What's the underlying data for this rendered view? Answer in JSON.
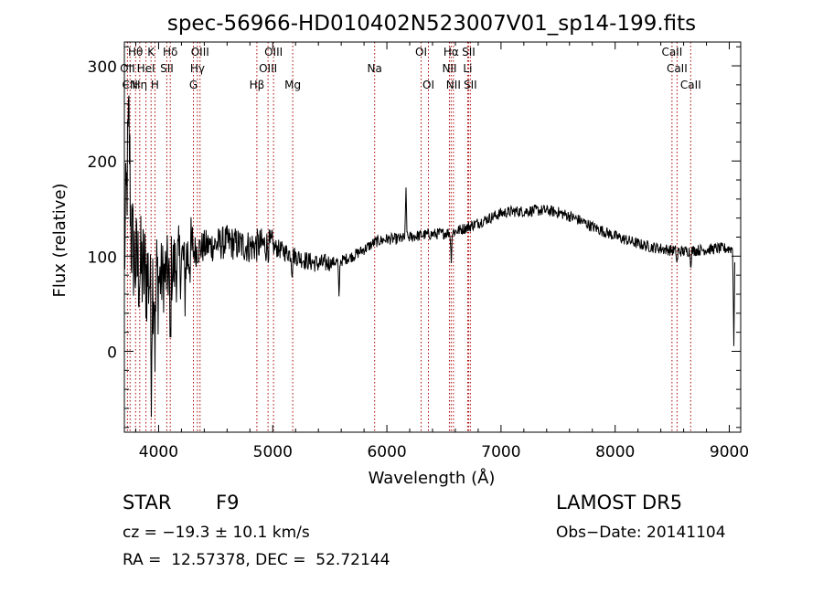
{
  "chart_data": {
    "type": "line",
    "title": "spec-56966-HD010402N523007V01_sp14-199.fits",
    "xlabel": "Wavelength (Å)",
    "ylabel": "Flux (relative)",
    "xlim": [
      3700,
      9100
    ],
    "ylim": [
      -85,
      325
    ],
    "xticks": [
      4000,
      5000,
      6000,
      7000,
      8000,
      9000
    ],
    "yticks": [
      0,
      100,
      200,
      300
    ],
    "line_color": "#000000",
    "marker_color": "#aa0000",
    "spectrum_anchors": [
      [
        3700,
        95
      ],
      [
        3740,
        240
      ],
      [
        3760,
        120
      ],
      [
        3800,
        90
      ],
      [
        3900,
        80
      ],
      [
        4000,
        75
      ],
      [
        4100,
        85
      ],
      [
        4200,
        95
      ],
      [
        4300,
        105
      ],
      [
        4400,
        110
      ],
      [
        4500,
        112
      ],
      [
        4600,
        115
      ],
      [
        4700,
        112
      ],
      [
        4800,
        110
      ],
      [
        4900,
        112
      ],
      [
        5000,
        110
      ],
      [
        5100,
        105
      ],
      [
        5200,
        100
      ],
      [
        5300,
        95
      ],
      [
        5400,
        92
      ],
      [
        5500,
        93
      ],
      [
        5600,
        95
      ],
      [
        5700,
        100
      ],
      [
        5800,
        107
      ],
      [
        5900,
        115
      ],
      [
        6000,
        118
      ],
      [
        6100,
        118
      ],
      [
        6200,
        120
      ],
      [
        6300,
        122
      ],
      [
        6400,
        123
      ],
      [
        6500,
        124
      ],
      [
        6600,
        126
      ],
      [
        6700,
        130
      ],
      [
        6800,
        135
      ],
      [
        6900,
        140
      ],
      [
        7000,
        145
      ],
      [
        7100,
        147
      ],
      [
        7200,
        147
      ],
      [
        7300,
        148
      ],
      [
        7400,
        148
      ],
      [
        7500,
        146
      ],
      [
        7600,
        142
      ],
      [
        7700,
        137
      ],
      [
        7800,
        131
      ],
      [
        7900,
        126
      ],
      [
        8000,
        121
      ],
      [
        8100,
        117
      ],
      [
        8200,
        113
      ],
      [
        8300,
        110
      ],
      [
        8400,
        108
      ],
      [
        8500,
        106
      ],
      [
        8600,
        105
      ],
      [
        8700,
        106
      ],
      [
        8800,
        107
      ],
      [
        8900,
        108
      ],
      [
        9000,
        108
      ],
      [
        9050,
        108
      ]
    ],
    "spectrum_features": [
      {
        "x": 3935,
        "depth": -100
      },
      {
        "x": 3970,
        "depth": -80
      },
      {
        "x": 4102,
        "depth": -95
      },
      {
        "x": 4230,
        "depth": -40
      },
      {
        "x": 5170,
        "depth": -20
      },
      {
        "x": 5580,
        "depth": -40
      },
      {
        "x": 6168,
        "depth": 50
      },
      {
        "x": 6563,
        "depth": -30
      },
      {
        "x": 8542,
        "depth": -15
      },
      {
        "x": 8662,
        "depth": -15
      },
      {
        "x": 9040,
        "depth": -100
      }
    ],
    "lines": [
      {
        "label": "Hθ",
        "x": 3798,
        "row": 0
      },
      {
        "label": "K",
        "x": 3934,
        "row": 0
      },
      {
        "label": "Hδ",
        "x": 4102,
        "row": 0
      },
      {
        "label": "OIII",
        "x": 4363,
        "row": 0
      },
      {
        "label": "OIII",
        "x": 5007,
        "row": 0
      },
      {
        "label": "OI",
        "x": 6300,
        "row": 0
      },
      {
        "label": "Hα",
        "x": 6563,
        "row": 0
      },
      {
        "label": "SII",
        "x": 6716,
        "row": 0
      },
      {
        "label": "CaII",
        "x": 8498,
        "row": 0
      },
      {
        "label": "OII",
        "x": 3727,
        "row": 1
      },
      {
        "label": "HeI",
        "x": 3889,
        "row": 1
      },
      {
        "label": "SII",
        "x": 4072,
        "row": 1
      },
      {
        "label": "Hγ",
        "x": 4340,
        "row": 1
      },
      {
        "label": "OIII",
        "x": 4959,
        "row": 1
      },
      {
        "label": "Na",
        "x": 5893,
        "row": 1
      },
      {
        "label": "NII",
        "x": 6548,
        "row": 1
      },
      {
        "label": "Li",
        "x": 6708,
        "row": 1
      },
      {
        "label": "CaII",
        "x": 8542,
        "row": 1
      },
      {
        "label": "CN",
        "x": 3750,
        "row": 2
      },
      {
        "label": "Hη",
        "x": 3835,
        "row": 2
      },
      {
        "label": "H",
        "x": 3968,
        "row": 2
      },
      {
        "label": "G",
        "x": 4305,
        "row": 2
      },
      {
        "label": "Hβ",
        "x": 4861,
        "row": 2
      },
      {
        "label": "Mg",
        "x": 5175,
        "row": 2
      },
      {
        "label": "OI",
        "x": 6364,
        "row": 2
      },
      {
        "label": "NII",
        "x": 6583,
        "row": 2
      },
      {
        "label": "SII",
        "x": 6731,
        "row": 2
      },
      {
        "label": "CaII",
        "x": 8662,
        "row": 2
      }
    ]
  },
  "info": {
    "object_class": "STAR",
    "subclass": "F9",
    "survey": "LAMOST DR5",
    "velocity": "cz = −19.3 ± 10.1 km/s",
    "obs_date": "Obs−Date: 20141104",
    "coords": "RA =  12.57378, DEC =  52.72144"
  }
}
